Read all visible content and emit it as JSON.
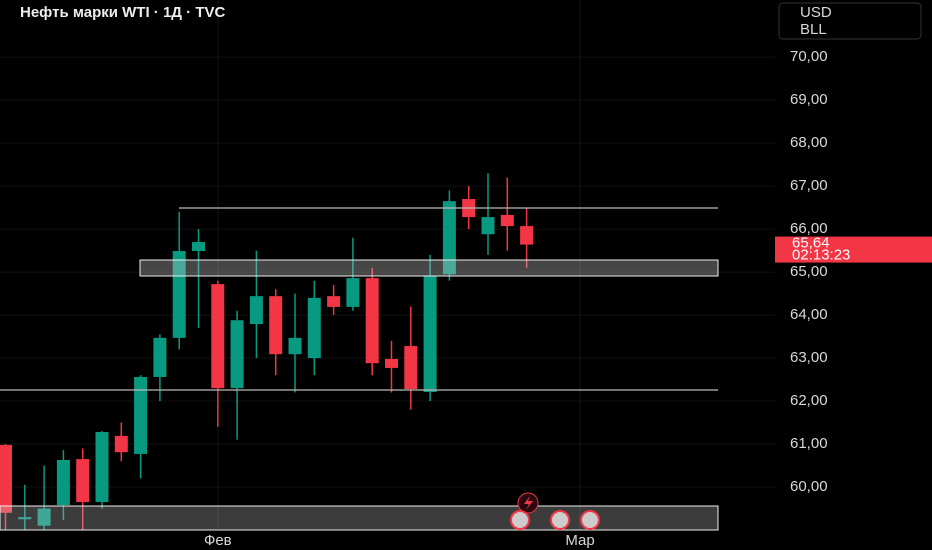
{
  "chart_data": {
    "type": "candlestick",
    "title": "Нефть марки WTI · 1Д · TVC",
    "currency": "USD",
    "unit": "BLL",
    "categories": [
      null,
      null,
      null,
      null,
      null,
      null,
      null,
      null,
      null,
      null,
      null,
      null,
      null,
      null,
      null,
      null,
      null,
      null,
      null,
      null,
      null,
      null,
      null,
      null,
      null,
      null,
      null,
      null
    ],
    "open": [
      60.98,
      59.25,
      59.1,
      59.58,
      60.65,
      59.65,
      61.19,
      60.77,
      62.56,
      63.47,
      65.49,
      64.72,
      62.3,
      63.79,
      64.44,
      63.09,
      63.0,
      64.44,
      64.19,
      64.86,
      62.98,
      63.28,
      62.21,
      64.95,
      66.7,
      65.88,
      66.33,
      66.07
    ],
    "high": [
      61.0,
      60.05,
      60.5,
      60.86,
      60.9,
      61.3,
      61.5,
      62.6,
      63.55,
      66.4,
      66.0,
      64.8,
      64.1,
      65.5,
      64.6,
      64.5,
      64.8,
      64.7,
      65.8,
      65.1,
      63.4,
      64.2,
      65.4,
      66.9,
      67.0,
      67.3,
      67.2,
      66.5
    ],
    "low": [
      59.0,
      59.0,
      59.0,
      59.23,
      59.0,
      59.5,
      60.6,
      60.2,
      62.0,
      63.2,
      63.7,
      61.4,
      61.1,
      63.0,
      62.6,
      62.2,
      62.6,
      64.0,
      64.1,
      62.6,
      62.2,
      61.8,
      62.0,
      64.8,
      66.0,
      65.4,
      65.5,
      65.1
    ],
    "close": [
      59.4,
      59.3,
      59.5,
      60.63,
      59.65,
      61.28,
      60.81,
      62.56,
      63.47,
      65.49,
      65.7,
      62.3,
      63.88,
      64.44,
      63.09,
      63.47,
      64.4,
      64.19,
      64.86,
      62.88,
      62.77,
      62.28,
      64.91,
      66.65,
      66.28,
      66.28,
      66.07,
      65.64
    ],
    "up_color": "#089981",
    "down_color": "#f23645",
    "ylim": [
      59.0,
      71.33
    ],
    "yticks": [
      {
        "value": 60,
        "label": "60,00"
      },
      {
        "value": 61,
        "label": "61,00"
      },
      {
        "value": 62,
        "label": "62,00"
      },
      {
        "value": 63,
        "label": "63,00"
      },
      {
        "value": 64,
        "label": "64,00"
      },
      {
        "value": 65,
        "label": "65,00"
      },
      {
        "value": 66,
        "label": "66,00"
      },
      {
        "value": 67,
        "label": "67,00"
      },
      {
        "value": 68,
        "label": "68,00"
      },
      {
        "value": 69,
        "label": "69,00"
      },
      {
        "value": 70,
        "label": "70,00"
      }
    ],
    "xticks": [
      {
        "value": 11,
        "label": "Фев"
      },
      {
        "value": 29.77,
        "label": "Мар"
      }
    ],
    "last_price": {
      "value": 65.64,
      "label": "65,64"
    },
    "countdown": "02:13:23",
    "grid": true
  }
}
